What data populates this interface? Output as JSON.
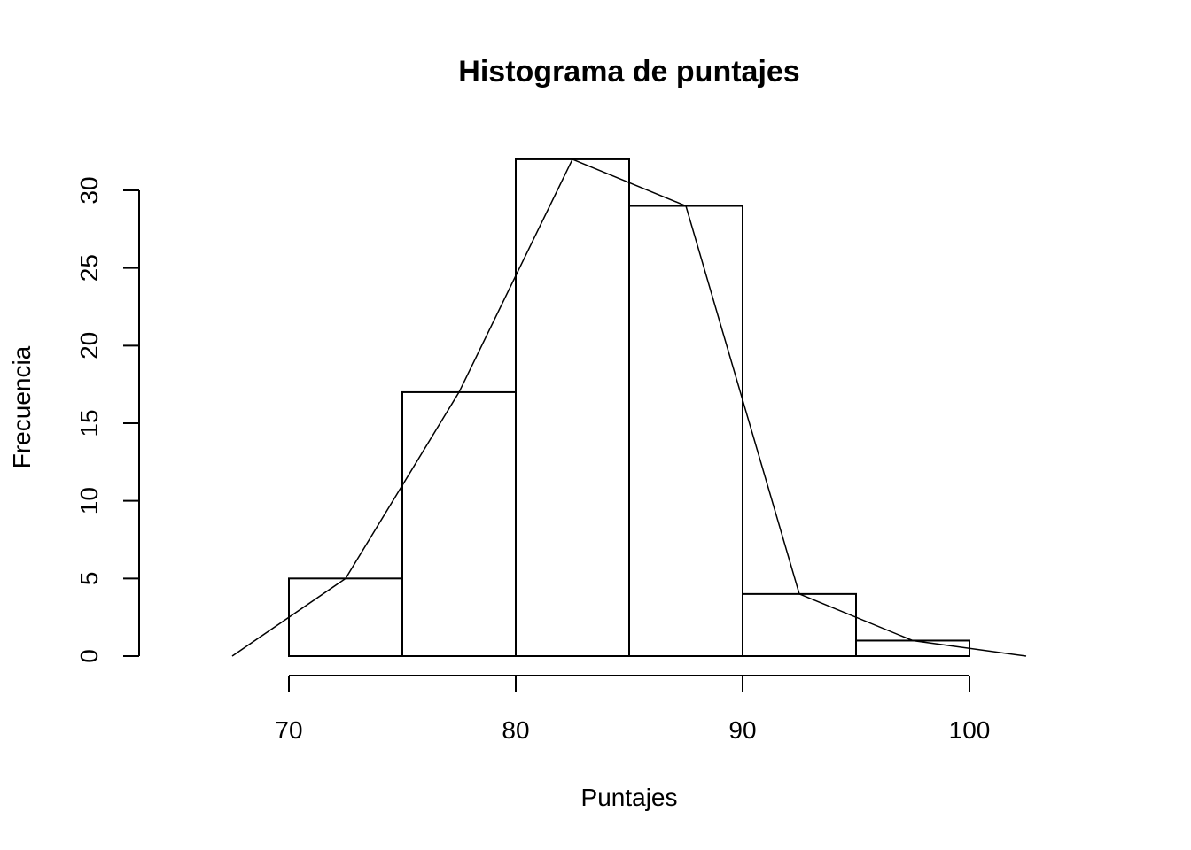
{
  "chart_data": {
    "type": "bar",
    "title": "Histograma de puntajes",
    "xlabel": "Puntajes",
    "ylabel": "Frecuencia",
    "bins": [
      {
        "start": 70,
        "end": 75,
        "count": 5
      },
      {
        "start": 75,
        "end": 80,
        "count": 17
      },
      {
        "start": 80,
        "end": 85,
        "count": 32
      },
      {
        "start": 85,
        "end": 90,
        "count": 29
      },
      {
        "start": 90,
        "end": 95,
        "count": 4
      },
      {
        "start": 95,
        "end": 100,
        "count": 1
      }
    ],
    "frequency_polygon": {
      "x": [
        67.5,
        72.5,
        77.5,
        82.5,
        87.5,
        92.5,
        97.5,
        102.5
      ],
      "y": [
        0,
        5,
        17,
        32,
        29,
        4,
        1,
        0
      ]
    },
    "x_ticks": [
      70,
      80,
      90,
      100
    ],
    "y_ticks": [
      0,
      5,
      10,
      15,
      20,
      25,
      30
    ],
    "x_tick_labels": [
      "70",
      "80",
      "90",
      "100"
    ],
    "y_tick_labels": [
      "0",
      "5",
      "10",
      "15",
      "20",
      "25",
      "30"
    ],
    "xlim": [
      63.4,
      104.1
    ],
    "ylim": [
      0,
      32
    ],
    "grid": false,
    "legend": "none"
  }
}
